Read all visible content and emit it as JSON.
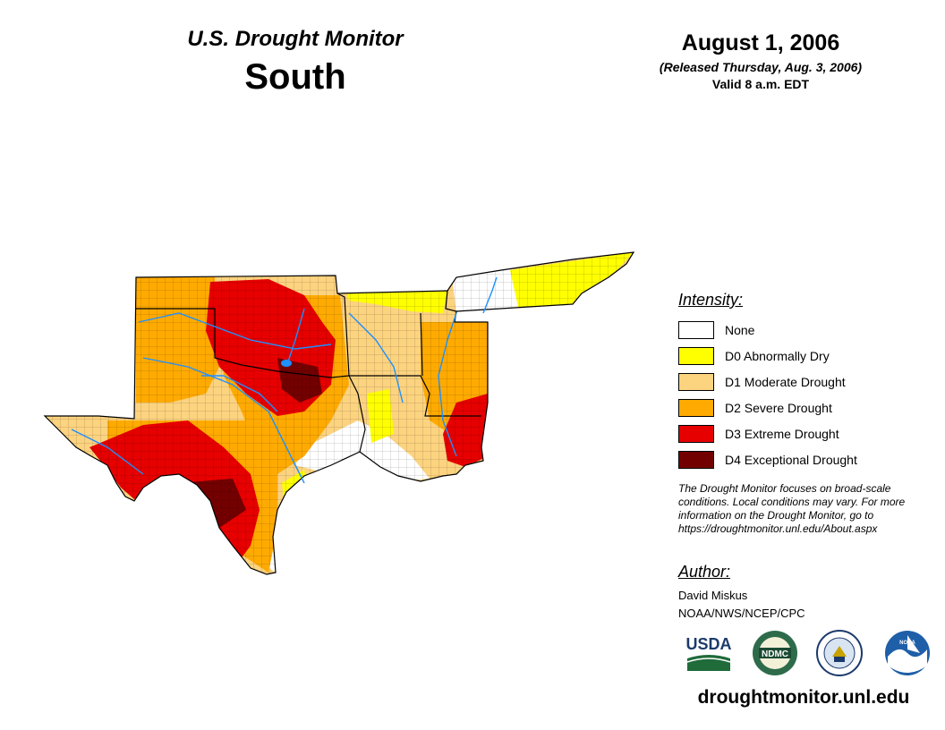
{
  "header": {
    "title": "U.S. Drought Monitor",
    "region": "South"
  },
  "date": {
    "main": "August 1, 2006",
    "released": "(Released Thursday, Aug. 3, 2006)",
    "valid": "Valid 8 a.m. EDT"
  },
  "legend": {
    "title": "Intensity:",
    "items": [
      {
        "label": "None",
        "color": "#ffffff"
      },
      {
        "label": "D0 Abnormally Dry",
        "color": "#ffff00"
      },
      {
        "label": "D1 Moderate Drought",
        "color": "#fcd37f"
      },
      {
        "label": "D2 Severe Drought",
        "color": "#ffaa00"
      },
      {
        "label": "D3 Extreme Drought",
        "color": "#e60000"
      },
      {
        "label": "D4 Exceptional Drought",
        "color": "#730000"
      }
    ]
  },
  "note": "The Drought Monitor focuses on broad-scale conditions. Local conditions may vary. For more information on the Drought Monitor, go to https://droughtmonitor.unl.edu/About.aspx",
  "author": {
    "title": "Author:",
    "name": "David Miskus",
    "org": "NOAA/NWS/NCEP/CPC"
  },
  "logos": {
    "usda": "USDA",
    "ndmc": "NDMC",
    "noaa": "NOAA"
  },
  "site_url": "droughtmonitor.unl.edu"
}
